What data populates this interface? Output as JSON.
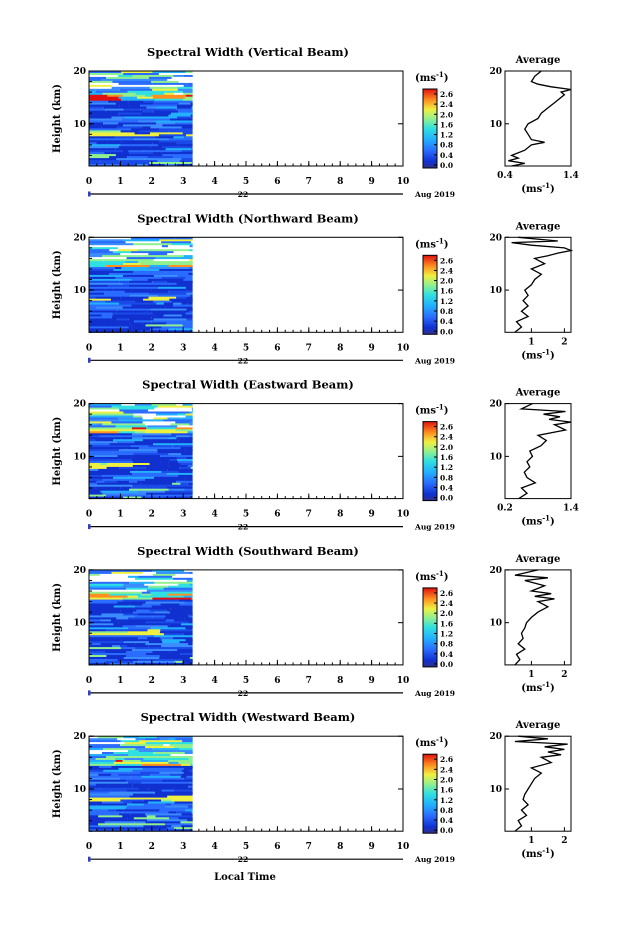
{
  "figure": {
    "xlabel": "Local Time",
    "month_label": "Aug 2019",
    "day_label": "22",
    "ylabel": "Height (km)",
    "unit": "(ms",
    "unit_exp": "-1",
    "unit_close": ")",
    "avg_title": "Average",
    "x_ticks": [
      "0",
      "1",
      "2",
      "3",
      "4",
      "5",
      "6",
      "7",
      "8",
      "9",
      "10"
    ],
    "y_ticks": [
      "20",
      "10"
    ],
    "colorbar_ticks": [
      "2.6",
      "2.4",
      "2.0",
      "1.6",
      "1.2",
      "0.8",
      "0.4",
      "0.0"
    ]
  },
  "chart_data": [
    {
      "type": "heatmap",
      "title": "Spectral Width (Vertical Beam)",
      "xlim": [
        0,
        10
      ],
      "ylim": [
        2,
        20
      ],
      "data_until": 3.3,
      "avg": {
        "xlim": [
          0.4,
          1.4
        ],
        "x_ticks": [
          "0.4",
          "1.4"
        ],
        "profile": [
          [
            0.5,
            2.0
          ],
          [
            0.7,
            2.5
          ],
          [
            0.45,
            3
          ],
          [
            0.6,
            3.5
          ],
          [
            0.5,
            4
          ],
          [
            0.7,
            5
          ],
          [
            0.8,
            6
          ],
          [
            1.0,
            6.5
          ],
          [
            0.8,
            7
          ],
          [
            0.75,
            8
          ],
          [
            0.7,
            9
          ],
          [
            0.75,
            10
          ],
          [
            0.9,
            11
          ],
          [
            0.95,
            12
          ],
          [
            1.05,
            13
          ],
          [
            1.15,
            14
          ],
          [
            1.25,
            15
          ],
          [
            1.3,
            15.5
          ],
          [
            1.25,
            16
          ],
          [
            1.4,
            16.5
          ],
          [
            1.1,
            17
          ],
          [
            0.9,
            17.5
          ],
          [
            0.8,
            18
          ],
          [
            0.85,
            19
          ],
          [
            0.95,
            20
          ]
        ]
      }
    },
    {
      "type": "heatmap",
      "title": "Spectral Width (Northward Beam)",
      "xlim": [
        0,
        10
      ],
      "ylim": [
        2,
        20
      ],
      "data_until": 3.3,
      "avg": {
        "xlim": [
          0.2,
          2.2
        ],
        "x_ticks": [
          "1",
          "2"
        ],
        "profile": [
          [
            0.5,
            2
          ],
          [
            0.7,
            3
          ],
          [
            0.55,
            4
          ],
          [
            0.9,
            5
          ],
          [
            0.7,
            6
          ],
          [
            0.9,
            7
          ],
          [
            0.75,
            8
          ],
          [
            0.9,
            9
          ],
          [
            0.8,
            10
          ],
          [
            1.0,
            11
          ],
          [
            1.1,
            12
          ],
          [
            1.3,
            13
          ],
          [
            1.0,
            14
          ],
          [
            1.4,
            15
          ],
          [
            1.1,
            16
          ],
          [
            1.5,
            16.5
          ],
          [
            1.8,
            17
          ],
          [
            2.2,
            17.5
          ],
          [
            2.0,
            18
          ],
          [
            1.0,
            18.5
          ],
          [
            0.4,
            19
          ],
          [
            1.8,
            19.3
          ],
          [
            0.6,
            20
          ]
        ]
      }
    },
    {
      "type": "heatmap",
      "title": "Spectral Width (Eastward Beam)",
      "xlim": [
        0,
        10
      ],
      "ylim": [
        2,
        20
      ],
      "data_until": 3.3,
      "avg": {
        "xlim": [
          0.2,
          1.4
        ],
        "x_ticks": [
          "0.2",
          "1.4"
        ],
        "profile": [
          [
            0.45,
            2
          ],
          [
            0.6,
            3
          ],
          [
            0.5,
            4
          ],
          [
            0.75,
            5
          ],
          [
            0.6,
            6
          ],
          [
            0.55,
            7
          ],
          [
            0.65,
            8
          ],
          [
            0.6,
            9
          ],
          [
            0.7,
            10
          ],
          [
            0.65,
            11
          ],
          [
            0.85,
            12
          ],
          [
            0.95,
            13
          ],
          [
            0.8,
            14
          ],
          [
            1.3,
            15
          ],
          [
            1.1,
            16
          ],
          [
            1.4,
            16.5
          ],
          [
            1.0,
            17
          ],
          [
            1.2,
            17.5
          ],
          [
            0.9,
            18
          ],
          [
            1.3,
            18.5
          ],
          [
            0.5,
            19
          ],
          [
            0.7,
            20
          ]
        ]
      }
    },
    {
      "type": "heatmap",
      "title": "Spectral Width (Southward Beam)",
      "xlim": [
        0,
        10
      ],
      "ylim": [
        2,
        20
      ],
      "data_until": 3.3,
      "avg": {
        "xlim": [
          0.2,
          2.2
        ],
        "x_ticks": [
          "1",
          "2"
        ],
        "profile": [
          [
            0.5,
            2
          ],
          [
            0.65,
            3
          ],
          [
            0.55,
            4
          ],
          [
            0.8,
            5
          ],
          [
            0.6,
            6
          ],
          [
            0.75,
            7
          ],
          [
            0.7,
            8
          ],
          [
            0.8,
            9
          ],
          [
            0.85,
            10
          ],
          [
            1.0,
            11
          ],
          [
            1.2,
            12
          ],
          [
            1.5,
            13
          ],
          [
            1.2,
            14
          ],
          [
            1.7,
            14.5
          ],
          [
            1.1,
            15
          ],
          [
            1.6,
            15.5
          ],
          [
            1.0,
            16
          ],
          [
            1.4,
            17
          ],
          [
            0.8,
            18
          ],
          [
            1.5,
            18.5
          ],
          [
            0.5,
            19
          ],
          [
            1.2,
            20
          ]
        ]
      }
    },
    {
      "type": "heatmap",
      "title": "Spectral Width (Westward Beam)",
      "xlim": [
        0,
        10
      ],
      "ylim": [
        2,
        20
      ],
      "data_until": 3.3,
      "avg": {
        "xlim": [
          0.2,
          2.2
        ],
        "x_ticks": [
          "1",
          "2"
        ],
        "profile": [
          [
            0.5,
            2
          ],
          [
            0.7,
            3
          ],
          [
            0.6,
            4
          ],
          [
            0.85,
            5
          ],
          [
            0.7,
            6
          ],
          [
            0.9,
            7
          ],
          [
            0.75,
            8
          ],
          [
            0.8,
            9
          ],
          [
            0.9,
            10
          ],
          [
            1.0,
            11
          ],
          [
            1.1,
            12
          ],
          [
            1.3,
            13
          ],
          [
            1.0,
            14
          ],
          [
            1.6,
            15
          ],
          [
            1.3,
            16
          ],
          [
            1.9,
            16.5
          ],
          [
            1.5,
            17
          ],
          [
            2.0,
            17.5
          ],
          [
            1.4,
            18
          ],
          [
            2.1,
            18.5
          ],
          [
            0.5,
            19
          ],
          [
            1.5,
            19.5
          ],
          [
            0.6,
            20
          ]
        ]
      }
    }
  ]
}
